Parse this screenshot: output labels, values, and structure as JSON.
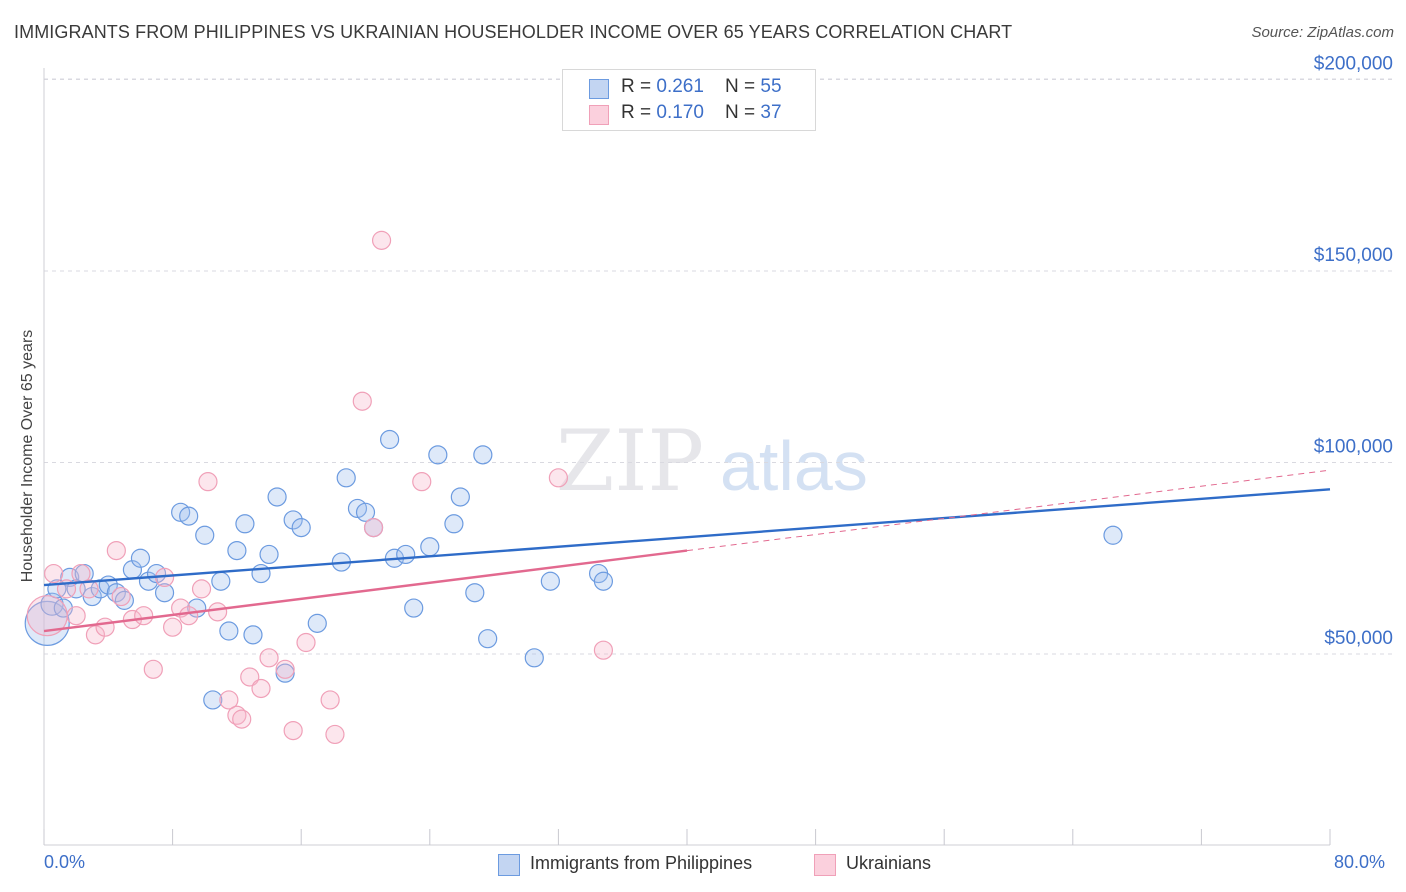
{
  "header": {
    "title": "IMMIGRANTS FROM PHILIPPINES VS UKRAINIAN HOUSEHOLDER INCOME OVER 65 YEARS CORRELATION CHART",
    "source": "Source: ZipAtlas.com"
  },
  "watermark": {
    "zip": "ZIP",
    "atlas": "atlas"
  },
  "legend_top": {
    "rows": [
      {
        "r_label": "R = ",
        "r_value": "0.261",
        "n_label": "N = ",
        "n_value": "55"
      },
      {
        "r_label": "R = ",
        "r_value": "0.170",
        "n_label": "N = ",
        "n_value": "37"
      }
    ]
  },
  "chart_data": {
    "type": "scatter",
    "title": "IMMIGRANTS FROM PHILIPPINES VS UKRAINIAN HOUSEHOLDER INCOME OVER 65 YEARS CORRELATION CHART",
    "xlabel": "",
    "ylabel": "Householder Income Over 65 years",
    "xlim": [
      0,
      80
    ],
    "ylim": [
      0,
      210000
    ],
    "x_tick_labels": [
      "0.0%",
      "80.0%"
    ],
    "y_ticks": [
      50000,
      100000,
      150000,
      200000
    ],
    "y_tick_labels": [
      "$50,000",
      "$100,000",
      "$150,000",
      "$200,000"
    ],
    "grid": true,
    "legend_position": "bottom",
    "colors": {
      "blue": "#6c9be0",
      "blue_line": "#2f6cc8",
      "pink": "#f0a0b8",
      "pink_line": "#e2698f",
      "axis_text": "#3d6fc8"
    },
    "series": [
      {
        "name": "Immigrants from Philippines",
        "color": "#6c9be0",
        "r": 0.261,
        "n": 55,
        "trend": {
          "x": [
            0,
            80
          ],
          "y": [
            68000,
            93000
          ]
        },
        "points": [
          [
            0.2,
            58000,
            22
          ],
          [
            0.5,
            63000,
            11
          ],
          [
            0.8,
            67000,
            9
          ],
          [
            1.2,
            62000,
            9
          ],
          [
            1.6,
            70000,
            9
          ],
          [
            2.0,
            67000,
            9
          ],
          [
            2.5,
            71000,
            9
          ],
          [
            3.0,
            65000,
            9
          ],
          [
            3.5,
            67000,
            9
          ],
          [
            4.0,
            68000,
            9
          ],
          [
            4.5,
            66000,
            9
          ],
          [
            5.0,
            64000,
            9
          ],
          [
            5.5,
            72000,
            9
          ],
          [
            6.0,
            75000,
            9
          ],
          [
            6.5,
            69000,
            9
          ],
          [
            7.0,
            71000,
            9
          ],
          [
            7.5,
            66000,
            9
          ],
          [
            8.5,
            87000,
            9
          ],
          [
            9.0,
            86000,
            9
          ],
          [
            9.5,
            62000,
            9
          ],
          [
            10.0,
            81000,
            9
          ],
          [
            10.5,
            38000,
            9
          ],
          [
            11.0,
            69000,
            9
          ],
          [
            11.5,
            56000,
            9
          ],
          [
            12.0,
            77000,
            9
          ],
          [
            12.5,
            84000,
            9
          ],
          [
            13.0,
            55000,
            9
          ],
          [
            13.5,
            71000,
            9
          ],
          [
            14.0,
            76000,
            9
          ],
          [
            14.5,
            91000,
            9
          ],
          [
            15.0,
            45000,
            9
          ],
          [
            15.5,
            85000,
            9
          ],
          [
            16.0,
            83000,
            9
          ],
          [
            17.0,
            58000,
            9
          ],
          [
            18.5,
            74000,
            9
          ],
          [
            18.8,
            96000,
            9
          ],
          [
            19.5,
            88000,
            9
          ],
          [
            20.0,
            87000,
            9
          ],
          [
            20.5,
            83000,
            9
          ],
          [
            21.5,
            106000,
            9
          ],
          [
            21.8,
            75000,
            9
          ],
          [
            22.5,
            76000,
            9
          ],
          [
            23.0,
            62000,
            9
          ],
          [
            24.0,
            78000,
            9
          ],
          [
            24.5,
            102000,
            9
          ],
          [
            25.5,
            84000,
            9
          ],
          [
            25.9,
            91000,
            9
          ],
          [
            26.8,
            66000,
            9
          ],
          [
            27.3,
            102000,
            9
          ],
          [
            27.6,
            54000,
            9
          ],
          [
            30.5,
            49000,
            9
          ],
          [
            31.5,
            69000,
            9
          ],
          [
            34.5,
            71000,
            9
          ],
          [
            34.8,
            69000,
            9
          ],
          [
            66.5,
            81000,
            9
          ]
        ]
      },
      {
        "name": "Ukrainians",
        "color": "#f0a0b8",
        "r": 0.17,
        "n": 37,
        "trend": {
          "x": [
            0,
            40
          ],
          "y": [
            56000,
            77000
          ]
        },
        "trend_dashed": {
          "x": [
            40,
            80
          ],
          "y": [
            77000,
            98000
          ]
        },
        "points": [
          [
            0.2,
            60000,
            20
          ],
          [
            0.6,
            71000,
            9
          ],
          [
            1.4,
            67000,
            9
          ],
          [
            2.0,
            60000,
            9
          ],
          [
            2.3,
            71000,
            9
          ],
          [
            3.2,
            55000,
            9
          ],
          [
            3.8,
            57000,
            9
          ],
          [
            4.5,
            77000,
            9
          ],
          [
            4.8,
            65000,
            9
          ],
          [
            5.5,
            59000,
            9
          ],
          [
            6.2,
            60000,
            9
          ],
          [
            6.8,
            46000,
            9
          ],
          [
            7.5,
            70000,
            9
          ],
          [
            8.0,
            57000,
            9
          ],
          [
            8.5,
            62000,
            9
          ],
          [
            9.0,
            60000,
            9
          ],
          [
            9.8,
            67000,
            9
          ],
          [
            10.2,
            95000,
            9
          ],
          [
            10.8,
            61000,
            9
          ],
          [
            11.5,
            38000,
            9
          ],
          [
            12.0,
            34000,
            9
          ],
          [
            12.3,
            33000,
            9
          ],
          [
            12.8,
            44000,
            9
          ],
          [
            13.5,
            41000,
            9
          ],
          [
            14.0,
            49000,
            9
          ],
          [
            15.0,
            46000,
            9
          ],
          [
            15.5,
            30000,
            9
          ],
          [
            16.3,
            53000,
            9
          ],
          [
            17.8,
            38000,
            9
          ],
          [
            18.1,
            29000,
            9
          ],
          [
            19.8,
            116000,
            9
          ],
          [
            20.5,
            83000,
            9
          ],
          [
            21.0,
            158000,
            9
          ],
          [
            23.5,
            95000,
            9
          ],
          [
            32.0,
            96000,
            9
          ],
          [
            34.8,
            51000,
            9
          ],
          [
            2.8,
            67000,
            9
          ]
        ]
      }
    ]
  },
  "legend_bottom": {
    "items": [
      {
        "label": "Immigrants from Philippines"
      },
      {
        "label": "Ukrainians"
      }
    ]
  }
}
